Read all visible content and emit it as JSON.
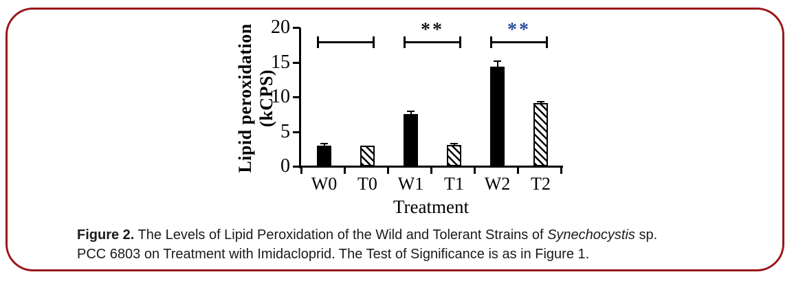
{
  "figure": {
    "border_color": "#9a1518"
  },
  "chart_data": {
    "type": "bar",
    "title": "",
    "xlabel": "Treatment",
    "ylabel": "Lipid peroxidation (kCPS)",
    "ylabel_line1": "Lipid peroxidation",
    "ylabel_line2": "(kCPS)",
    "categories": [
      "W0",
      "T0",
      "W1",
      "T1",
      "W2",
      "T2"
    ],
    "values": [
      3.0,
      3.0,
      7.5,
      3.1,
      14.4,
      9.1
    ],
    "errors": [
      0.25,
      0,
      0.4,
      0.2,
      0.7,
      0.2
    ],
    "bar_styles": [
      "solid",
      "hatched",
      "solid",
      "hatched",
      "solid",
      "hatched"
    ],
    "bar_color": "#000000",
    "ylim": [
      0,
      20
    ],
    "yticks": [
      0,
      5,
      10,
      15,
      20
    ],
    "grid": false,
    "legend": "none",
    "significance": [
      {
        "from": "W0",
        "to": "T0",
        "label": "",
        "color": "#000000"
      },
      {
        "from": "W1",
        "to": "T1",
        "label": "**",
        "color": "#1a1a1a"
      },
      {
        "from": "W2",
        "to": "T2",
        "label": "**",
        "color": "#2a4b9e"
      }
    ]
  },
  "caption": {
    "line1_bold": "Figure 2.",
    "line1_text": " The Levels of Lipid Peroxidation of the Wild and Tolerant Strains of ",
    "line1_italic": "Synechocystis",
    "line1_suffix": " sp.",
    "line2": "PCC 6803 on Treatment with Imidacloprid. The Test of Significance is as in Figure 1."
  }
}
